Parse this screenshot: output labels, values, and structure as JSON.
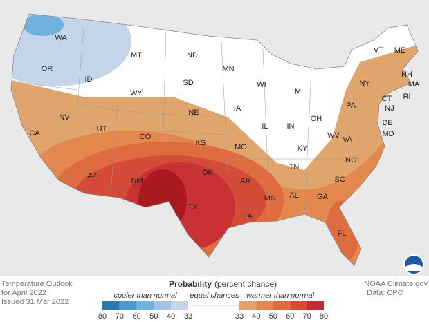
{
  "map": {
    "state_labels": [
      "WA",
      "OR",
      "ID",
      "MT",
      "ND",
      "SD",
      "WY",
      "NV",
      "UT",
      "CO",
      "NE",
      "KS",
      "CA",
      "AZ",
      "NM",
      "OK",
      "TX",
      "MN",
      "IA",
      "MO",
      "AR",
      "LA",
      "WI",
      "IL",
      "MI",
      "IN",
      "OH",
      "KY",
      "TN",
      "MS",
      "AL",
      "GA",
      "FL",
      "SC",
      "NC",
      "VA",
      "WV",
      "PA",
      "NY",
      "VT",
      "NH",
      "ME",
      "MA",
      "CT",
      "RI",
      "NJ",
      "DE",
      "MD"
    ]
  },
  "footer": {
    "title_lines": [
      "Temperature Outlook",
      "for April 2022",
      "Issued 31 Mar 2022"
    ],
    "credit_lines": [
      "NOAA Climate.gov",
      "Data: CPC"
    ]
  },
  "legend": {
    "title": "Probability",
    "title_note": "(percent chance)",
    "cooler_caption": "cooler than normal",
    "equal_caption": "equal chances",
    "warmer_caption": "warmer than normal",
    "cooler_ticks": [
      80,
      70,
      60,
      50,
      40,
      33
    ],
    "cooler_colors": [
      "#2a78b5",
      "#4b99d3",
      "#72b2e0",
      "#9dc3e5",
      "#c4d5ea"
    ],
    "warmer_ticks": [
      33,
      40,
      50,
      60,
      70,
      80
    ],
    "warmer_colors": [
      "#e0a56c",
      "#e3894f",
      "#df6b41",
      "#d44c38",
      "#c12c30"
    ]
  }
}
